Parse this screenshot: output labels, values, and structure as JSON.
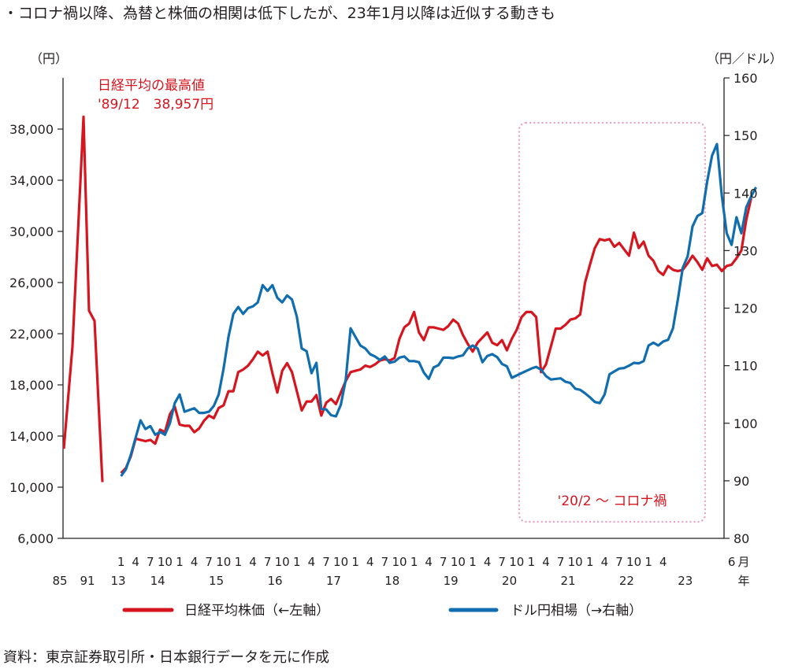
{
  "title": "・コロナ禍以降、為替と株価の相関は低下したが、23年1月以降は近似する動きも",
  "source": "資料：東京証券取引所・日本銀行データを元に作成",
  "colors": {
    "nikkei": "#d7151f",
    "usdjpy": "#0f6db0",
    "frame": "#231f20",
    "highlight": "#e8a6c4"
  },
  "chart_data": {
    "type": "line",
    "title": "・コロナ禍以降、為替と株価の相関は低下したが、23年1月以降は近似する動きも",
    "left_axis": {
      "unit_label": "（円）",
      "range": [
        6000,
        42000
      ],
      "ticks": [
        6000,
        10000,
        14000,
        18000,
        22000,
        26000,
        30000,
        34000,
        38000
      ],
      "tick_labels": [
        "6,000",
        "10,000",
        "14,000",
        "18,000",
        "22,000",
        "26,000",
        "30,000",
        "34,000",
        "38,000"
      ]
    },
    "right_axis": {
      "unit_label": "（円／ドル）",
      "range": [
        80,
        160
      ],
      "ticks": [
        80,
        90,
        100,
        110,
        120,
        130,
        140,
        150,
        160
      ],
      "tick_labels": [
        "80",
        "90",
        "100",
        "110",
        "120",
        "130",
        "140",
        "150",
        "160"
      ]
    },
    "x_axis": {
      "month_labels": [
        "1",
        "4",
        "7",
        "10",
        "1",
        "4",
        "7",
        "10",
        "1",
        "4",
        "7",
        "10",
        "1",
        "4",
        "7",
        "10",
        "1",
        "4",
        "7",
        "10",
        "1",
        "4",
        "7",
        "10",
        "1",
        "4",
        "7",
        "10",
        "1",
        "4",
        "7",
        "10",
        "1",
        "4",
        "7",
        "10",
        "1",
        "4",
        "6"
      ],
      "year_labels": [
        "85",
        "91",
        "13",
        "14",
        "15",
        "16",
        "17",
        "18",
        "19",
        "20",
        "21",
        "22",
        "23"
      ],
      "month_unit": "月",
      "year_unit": "年"
    },
    "series": [
      {
        "name": "日経平均株価（←左軸）",
        "axis": "left",
        "segments": [
          {
            "x_labels": [
              "1985",
              "1988",
              "1989/12",
              "1990",
              "1991",
              "1992"
            ],
            "values": [
              13000,
              21000,
              38957,
              23800,
              23000,
              10400
            ]
          },
          {
            "start_month": "2013-01",
            "values": [
              11100,
              11500,
              12400,
              13800,
              13700,
              13600,
              13700,
              13400,
              14500,
              14300,
              15700,
              16300,
              14900,
              14800,
              14800,
              14300,
              14600,
              15200,
              15600,
              15400,
              16200,
              16400,
              17500,
              17500,
              19000,
              19200,
              19500,
              20000,
              20600,
              20300,
              20600,
              18900,
              17400,
              19100,
              19700,
              19000,
              17500,
              16000,
              16700,
              16700,
              17200,
              15600,
              16600,
              16900,
              16500,
              17400,
              18300,
              19000,
              19100,
              19200,
              19500,
              19400,
              19600,
              19900,
              20000,
              19900,
              20100,
              21600,
              22500,
              22800,
              23700,
              22100,
              21500,
              22500,
              22500,
              22400,
              22300,
              22600,
              23100,
              22800,
              21900,
              21200,
              20600,
              21300,
              21700,
              22100,
              21300,
              21100,
              21500,
              20700,
              21600,
              22300,
              23300,
              23700,
              23700,
              23300,
              19000,
              19600,
              21000,
              22400,
              22400,
              22700,
              23100,
              23200,
              23500,
              26000,
              27400,
              28700,
              29400,
              29300,
              29400,
              28800,
              29100,
              28600,
              28100,
              29900,
              28700,
              29200,
              28100,
              27700,
              26900,
              26600,
              27300,
              27000,
              26900,
              27000,
              27500,
              28100,
              27600,
              27000,
              27900,
              27300,
              27400,
              26900,
              27300,
              27400,
              27900,
              28500,
              30900,
              32600
            ]
          }
        ]
      },
      {
        "name": "ドル円相場（→右軸）",
        "axis": "right",
        "start_month": "2013-01",
        "values": [
          90.8,
          92.0,
          94.5,
          97.5,
          100.5,
          99.0,
          99.5,
          98.0,
          98.5,
          98.0,
          100.0,
          103.5,
          105.0,
          102.0,
          102.3,
          102.6,
          101.8,
          101.8,
          102.0,
          103.0,
          105.0,
          109.5,
          115.0,
          119.0,
          120.2,
          119.0,
          120.0,
          120.3,
          121.0,
          124.0,
          123.0,
          124.0,
          121.8,
          121.0,
          122.2,
          121.5,
          118.5,
          113.0,
          112.5,
          108.7,
          110.5,
          102.5,
          102.4,
          101.4,
          101.2,
          103.2,
          107.5,
          116.5,
          115.0,
          113.5,
          113.0,
          112.0,
          111.6,
          111.0,
          111.6,
          110.5,
          110.7,
          111.4,
          111.6,
          110.8,
          110.8,
          110.6,
          108.8,
          107.7,
          109.7,
          110.1,
          111.4,
          111.4,
          111.3,
          111.6,
          111.8,
          113.0,
          113.5,
          113.0,
          110.6,
          111.7,
          112.0,
          111.5,
          110.3,
          109.9,
          107.9,
          108.3,
          108.7,
          109.1,
          109.5,
          109.8,
          109.3,
          108.2,
          107.6,
          107.7,
          107.8,
          107.2,
          107.0,
          106.0,
          105.8,
          105.2,
          104.5,
          103.7,
          103.5,
          105.0,
          108.5,
          109.0,
          109.5,
          109.6,
          110.0,
          110.5,
          110.4,
          110.8,
          113.5,
          114.0,
          113.5,
          114.2,
          114.5,
          116.5,
          121.5,
          127.0,
          129.0,
          134.2,
          136.0,
          136.5,
          142.0,
          146.5,
          148.5,
          139.5,
          133.0,
          131.0,
          135.8,
          133.0,
          137.5,
          139.4,
          141.0
        ]
      }
    ],
    "annotations": [
      {
        "text": "日経平均の最高値",
        "color": "#d7151f"
      },
      {
        "text": "'89/12　38,957円",
        "color": "#d7151f"
      },
      {
        "text": "'20/2 〜 コロナ禍",
        "color": "#d7151f"
      }
    ],
    "highlight_period": {
      "from": "2020-02",
      "to": "2023-06",
      "style": "dotted pink box"
    },
    "legend": {
      "placement": "bottom-center",
      "entries": [
        {
          "text": "日経平均株価（←左軸）",
          "color": "#d7151f"
        },
        {
          "text": "ドル円相場（→右軸）",
          "color": "#0f6db0"
        }
      ]
    },
    "grid": false
  }
}
